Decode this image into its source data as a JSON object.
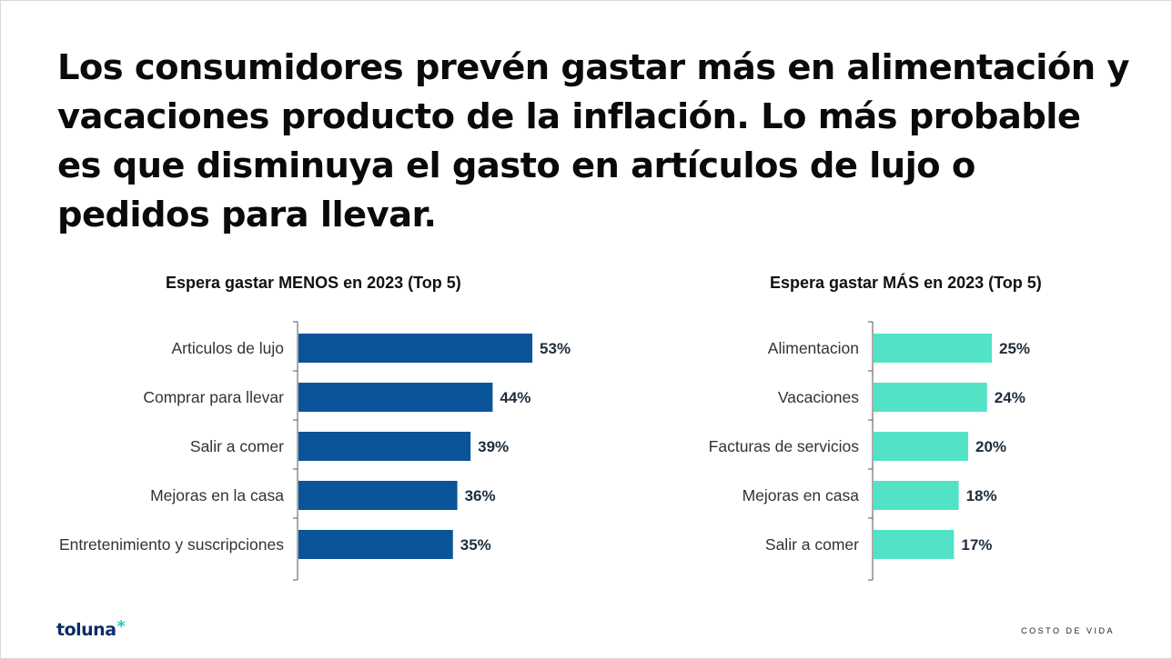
{
  "title": "Los consumidores prevén gastar más en alimentación y vacaciones producto de la inflación. Lo más probable es que disminuya el gasto en artículos de lujo o pedidos para llevar.",
  "brand": {
    "name": "toluna",
    "mark": "*"
  },
  "footer": "COSTO DE VIDA",
  "colors": {
    "less": "#0a5499",
    "more": "#52e3c6",
    "axis": "#555555"
  },
  "chart_data": [
    {
      "type": "bar",
      "orientation": "horizontal",
      "title": "Espera gastar MENOS en 2023 (Top 5)",
      "categories": [
        "Articulos de lujo",
        "Comprar para llevar",
        "Salir a comer",
        "Mejoras en la casa",
        "Entretenimiento y suscripciones"
      ],
      "values": [
        53,
        44,
        39,
        36,
        35
      ],
      "value_labels": [
        "53%",
        "44%",
        "39%",
        "36%",
        "35%"
      ],
      "unit": "%",
      "grid": false
    },
    {
      "type": "bar",
      "orientation": "horizontal",
      "title": "Espera gastar MÁS en 2023 (Top 5)",
      "categories": [
        "Alimentacion",
        "Vacaciones",
        "Facturas de servicios",
        "Mejoras en casa",
        "Salir a comer"
      ],
      "values": [
        25,
        24,
        20,
        18,
        17
      ],
      "value_labels": [
        "25%",
        "24%",
        "20%",
        "18%",
        "17%"
      ],
      "unit": "%",
      "grid": false
    }
  ]
}
